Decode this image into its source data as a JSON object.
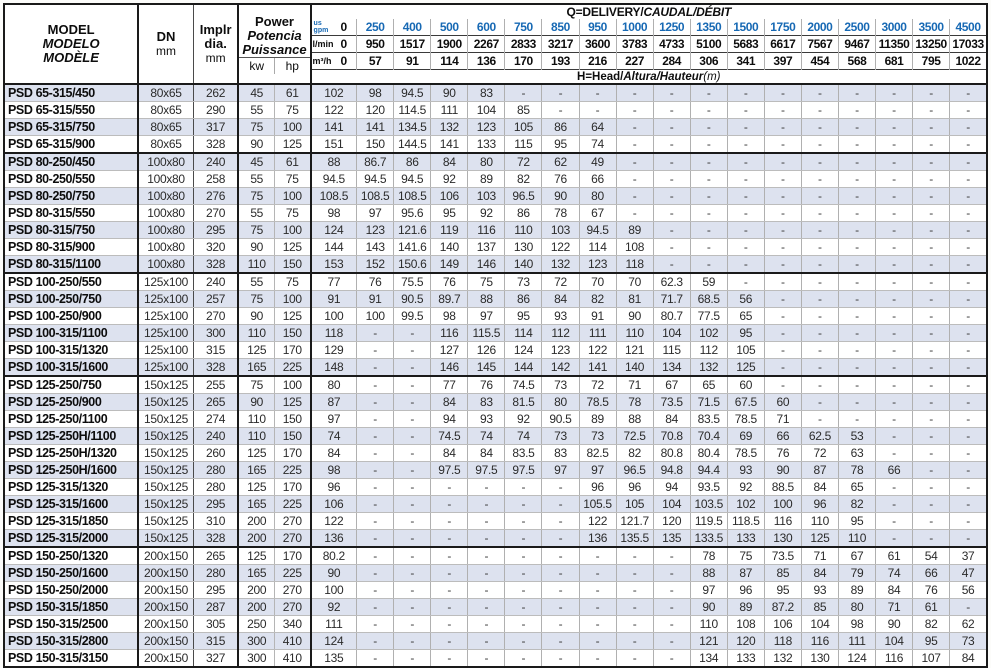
{
  "header": {
    "model_title": [
      "MODEL",
      "MODELO",
      "MODÈLE"
    ],
    "dn_label": "DN",
    "dn_unit": "mm",
    "dia_lines": [
      "Implr",
      "dia."
    ],
    "dia_unit": "mm",
    "power_title": [
      "Power",
      "Potencia",
      "Puissance"
    ],
    "power_units": [
      "kw",
      "hp"
    ],
    "q_title": {
      "bold": "Q=DELIVERY/",
      "italic": "CAUDAL/DÉBIT"
    },
    "h_title": {
      "bold": "H=Head/",
      "italic": "Altura/Hauteur",
      "unit": "(m)"
    },
    "flow": {
      "gpm": {
        "label_lines": [
          "us",
          "gpm"
        ],
        "zero": "0",
        "values": [
          "250",
          "400",
          "500",
          "600",
          "750",
          "850",
          "950",
          "1000",
          "1250",
          "1350",
          "1500",
          "1750",
          "2000",
          "2500",
          "3000",
          "3500",
          "4500"
        ]
      },
      "lmin": {
        "label": "l/min",
        "zero": "0",
        "values": [
          "950",
          "1517",
          "1900",
          "2267",
          "2833",
          "3217",
          "3600",
          "3783",
          "4733",
          "5100",
          "5683",
          "6617",
          "7567",
          "9467",
          "11350",
          "13250",
          "17033"
        ]
      },
      "m3h": {
        "label": "m³/h",
        "zero": "0",
        "values": [
          "57",
          "91",
          "114",
          "136",
          "170",
          "193",
          "216",
          "227",
          "284",
          "306",
          "341",
          "397",
          "454",
          "568",
          "681",
          "795",
          "1022"
        ]
      }
    },
    "accent_blue": "#1769b4",
    "shaded_row_color": "#dde2ef"
  },
  "group_breaks_after": [
    3,
    10,
    16,
    26
  ],
  "rows": [
    [
      "PSD 65-315/450",
      "80x65",
      "262",
      "45",
      "61",
      [
        "102",
        "98",
        "94.5",
        "90",
        "83",
        "-",
        "-",
        "-",
        "-",
        "-",
        "-",
        "-",
        "-",
        "-",
        "-",
        "-",
        "-",
        "-"
      ]
    ],
    [
      "PSD 65-315/550",
      "80x65",
      "290",
      "55",
      "75",
      [
        "122",
        "120",
        "114.5",
        "111",
        "104",
        "85",
        "-",
        "-",
        "-",
        "-",
        "-",
        "-",
        "-",
        "-",
        "-",
        "-",
        "-",
        "-"
      ]
    ],
    [
      "PSD 65-315/750",
      "80x65",
      "317",
      "75",
      "100",
      [
        "141",
        "141",
        "134.5",
        "132",
        "123",
        "105",
        "86",
        "64",
        "-",
        "-",
        "-",
        "-",
        "-",
        "-",
        "-",
        "-",
        "-",
        "-"
      ]
    ],
    [
      "PSD 65-315/900",
      "80x65",
      "328",
      "90",
      "125",
      [
        "151",
        "150",
        "144.5",
        "141",
        "133",
        "115",
        "95",
        "74",
        "-",
        "-",
        "-",
        "-",
        "-",
        "-",
        "-",
        "-",
        "-",
        "-"
      ]
    ],
    [
      "PSD 80-250/450",
      "100x80",
      "240",
      "45",
      "61",
      [
        "88",
        "86.7",
        "86",
        "84",
        "80",
        "72",
        "62",
        "49",
        "-",
        "-",
        "-",
        "-",
        "-",
        "-",
        "-",
        "-",
        "-",
        "-"
      ]
    ],
    [
      "PSD 80-250/550",
      "100x80",
      "258",
      "55",
      "75",
      [
        "94.5",
        "94.5",
        "94.5",
        "92",
        "89",
        "82",
        "76",
        "66",
        "-",
        "-",
        "-",
        "-",
        "-",
        "-",
        "-",
        "-",
        "-",
        "-"
      ]
    ],
    [
      "PSD 80-250/750",
      "100x80",
      "276",
      "75",
      "100",
      [
        "108.5",
        "108.5",
        "108.5",
        "106",
        "103",
        "96.5",
        "90",
        "80",
        "-",
        "-",
        "-",
        "-",
        "-",
        "-",
        "-",
        "-",
        "-",
        "-"
      ]
    ],
    [
      "PSD 80-315/550",
      "100x80",
      "270",
      "55",
      "75",
      [
        "98",
        "97",
        "95.6",
        "95",
        "92",
        "86",
        "78",
        "67",
        "-",
        "-",
        "-",
        "-",
        "-",
        "-",
        "-",
        "-",
        "-",
        "-"
      ]
    ],
    [
      "PSD 80-315/750",
      "100x80",
      "295",
      "75",
      "100",
      [
        "124",
        "123",
        "121.6",
        "119",
        "116",
        "110",
        "103",
        "94.5",
        "89",
        "-",
        "-",
        "-",
        "-",
        "-",
        "-",
        "-",
        "-",
        "-"
      ]
    ],
    [
      "PSD 80-315/900",
      "100x80",
      "320",
      "90",
      "125",
      [
        "144",
        "143",
        "141.6",
        "140",
        "137",
        "130",
        "122",
        "114",
        "108",
        "-",
        "-",
        "-",
        "-",
        "-",
        "-",
        "-",
        "-",
        "-"
      ]
    ],
    [
      "PSD 80-315/1100",
      "100x80",
      "328",
      "110",
      "150",
      [
        "153",
        "152",
        "150.6",
        "149",
        "146",
        "140",
        "132",
        "123",
        "118",
        "-",
        "-",
        "-",
        "-",
        "-",
        "-",
        "-",
        "-",
        "-"
      ]
    ],
    [
      "PSD 100-250/550",
      "125x100",
      "240",
      "55",
      "75",
      [
        "77",
        "76",
        "75.5",
        "76",
        "75",
        "73",
        "72",
        "70",
        "70",
        "62.3",
        "59",
        "-",
        "-",
        "-",
        "-",
        "-",
        "-",
        "-"
      ]
    ],
    [
      "PSD 100-250/750",
      "125x100",
      "257",
      "75",
      "100",
      [
        "91",
        "91",
        "90.5",
        "89.7",
        "88",
        "86",
        "84",
        "82",
        "81",
        "71.7",
        "68.5",
        "56",
        "-",
        "-",
        "-",
        "-",
        "-",
        "-"
      ]
    ],
    [
      "PSD 100-250/900",
      "125x100",
      "270",
      "90",
      "125",
      [
        "100",
        "100",
        "99.5",
        "98",
        "97",
        "95",
        "93",
        "91",
        "90",
        "80.7",
        "77.5",
        "65",
        "-",
        "-",
        "-",
        "-",
        "-",
        "-"
      ]
    ],
    [
      "PSD 100-315/1100",
      "125x100",
      "300",
      "110",
      "150",
      [
        "118",
        "-",
        "-",
        "116",
        "115.5",
        "114",
        "112",
        "111",
        "110",
        "104",
        "102",
        "95",
        "-",
        "-",
        "-",
        "-",
        "-",
        "-"
      ]
    ],
    [
      "PSD 100-315/1320",
      "125x100",
      "315",
      "125",
      "170",
      [
        "129",
        "-",
        "-",
        "127",
        "126",
        "124",
        "123",
        "122",
        "121",
        "115",
        "112",
        "105",
        "-",
        "-",
        "-",
        "-",
        "-",
        "-"
      ]
    ],
    [
      "PSD 100-315/1600",
      "125x100",
      "328",
      "165",
      "225",
      [
        "148",
        "-",
        "-",
        "146",
        "145",
        "144",
        "142",
        "141",
        "140",
        "134",
        "132",
        "125",
        "-",
        "-",
        "-",
        "-",
        "-",
        "-"
      ]
    ],
    [
      "PSD 125-250/750",
      "150x125",
      "255",
      "75",
      "100",
      [
        "80",
        "-",
        "-",
        "77",
        "76",
        "74.5",
        "73",
        "72",
        "71",
        "67",
        "65",
        "60",
        "-",
        "-",
        "-",
        "-",
        "-",
        "-"
      ]
    ],
    [
      "PSD 125-250/900",
      "150x125",
      "265",
      "90",
      "125",
      [
        "87",
        "-",
        "-",
        "84",
        "83",
        "81.5",
        "80",
        "78.5",
        "78",
        "73.5",
        "71.5",
        "67.5",
        "60",
        "-",
        "-",
        "-",
        "-",
        "-"
      ]
    ],
    [
      "PSD 125-250/1100",
      "150x125",
      "274",
      "110",
      "150",
      [
        "97",
        "-",
        "-",
        "94",
        "93",
        "92",
        "90.5",
        "89",
        "88",
        "84",
        "83.5",
        "78.5",
        "71",
        "-",
        "-",
        "-",
        "-",
        "-"
      ]
    ],
    [
      "PSD 125-250H/1100",
      "150x125",
      "240",
      "110",
      "150",
      [
        "74",
        "-",
        "-",
        "74.5",
        "74",
        "74",
        "73",
        "73",
        "72.5",
        "70.8",
        "70.4",
        "69",
        "66",
        "62.5",
        "53",
        "-",
        "-",
        "-"
      ]
    ],
    [
      "PSD 125-250H/1320",
      "150x125",
      "260",
      "125",
      "170",
      [
        "84",
        "-",
        "-",
        "84",
        "84",
        "83.5",
        "83",
        "82.5",
        "82",
        "80.8",
        "80.4",
        "78.5",
        "76",
        "72",
        "63",
        "-",
        "-",
        "-"
      ]
    ],
    [
      "PSD 125-250H/1600",
      "150x125",
      "280",
      "165",
      "225",
      [
        "98",
        "-",
        "-",
        "97.5",
        "97.5",
        "97.5",
        "97",
        "97",
        "96.5",
        "94.8",
        "94.4",
        "93",
        "90",
        "87",
        "78",
        "66",
        "-",
        "-"
      ]
    ],
    [
      "PSD 125-315/1320",
      "150x125",
      "280",
      "125",
      "170",
      [
        "96",
        "-",
        "-",
        "-",
        "-",
        "-",
        "-",
        "96",
        "96",
        "94",
        "93.5",
        "92",
        "88.5",
        "84",
        "65",
        "-",
        "-",
        "-"
      ]
    ],
    [
      "PSD 125-315/1600",
      "150x125",
      "295",
      "165",
      "225",
      [
        "106",
        "-",
        "-",
        "-",
        "-",
        "-",
        "-",
        "105.5",
        "105",
        "104",
        "103.5",
        "102",
        "100",
        "96",
        "82",
        "-",
        "-",
        "-"
      ]
    ],
    [
      "PSD 125-315/1850",
      "150x125",
      "310",
      "200",
      "270",
      [
        "122",
        "-",
        "-",
        "-",
        "-",
        "-",
        "-",
        "122",
        "121.7",
        "120",
        "119.5",
        "118.5",
        "116",
        "110",
        "95",
        "-",
        "-",
        "-"
      ]
    ],
    [
      "PSD 125-315/2000",
      "150x125",
      "328",
      "200",
      "270",
      [
        "136",
        "-",
        "-",
        "-",
        "-",
        "-",
        "-",
        "136",
        "135.5",
        "135",
        "133.5",
        "133",
        "130",
        "125",
        "110",
        "-",
        "-",
        "-"
      ]
    ],
    [
      "PSD 150-250/1320",
      "200x150",
      "265",
      "125",
      "170",
      [
        "80.2",
        "-",
        "-",
        "-",
        "-",
        "-",
        "-",
        "-",
        "-",
        "-",
        "78",
        "75",
        "73.5",
        "71",
        "67",
        "61",
        "54",
        "37"
      ]
    ],
    [
      "PSD 150-250/1600",
      "200x150",
      "280",
      "165",
      "225",
      [
        "90",
        "-",
        "-",
        "-",
        "-",
        "-",
        "-",
        "-",
        "-",
        "-",
        "88",
        "87",
        "85",
        "84",
        "79",
        "74",
        "66",
        "47"
      ]
    ],
    [
      "PSD 150-250/2000",
      "200x150",
      "295",
      "200",
      "270",
      [
        "100",
        "-",
        "-",
        "-",
        "-",
        "-",
        "-",
        "-",
        "-",
        "-",
        "97",
        "96",
        "95",
        "93",
        "89",
        "84",
        "76",
        "56"
      ]
    ],
    [
      "PSD 150-315/1850",
      "200x150",
      "287",
      "200",
      "270",
      [
        "92",
        "-",
        "-",
        "-",
        "-",
        "-",
        "-",
        "-",
        "-",
        "-",
        "90",
        "89",
        "87.2",
        "85",
        "80",
        "71",
        "61",
        "-"
      ]
    ],
    [
      "PSD 150-315/2500",
      "200x150",
      "305",
      "250",
      "340",
      [
        "111",
        "-",
        "-",
        "-",
        "-",
        "-",
        "-",
        "-",
        "-",
        "-",
        "110",
        "108",
        "106",
        "104",
        "98",
        "90",
        "82",
        "62"
      ]
    ],
    [
      "PSD 150-315/2800",
      "200x150",
      "315",
      "300",
      "410",
      [
        "124",
        "-",
        "-",
        "-",
        "-",
        "-",
        "-",
        "-",
        "-",
        "-",
        "121",
        "120",
        "118",
        "116",
        "111",
        "104",
        "95",
        "73"
      ]
    ],
    [
      "PSD 150-315/3150",
      "200x150",
      "327",
      "300",
      "410",
      [
        "135",
        "-",
        "-",
        "-",
        "-",
        "-",
        "-",
        "-",
        "-",
        "-",
        "134",
        "133",
        "132",
        "130",
        "124",
        "116",
        "107",
        "84"
      ]
    ]
  ]
}
